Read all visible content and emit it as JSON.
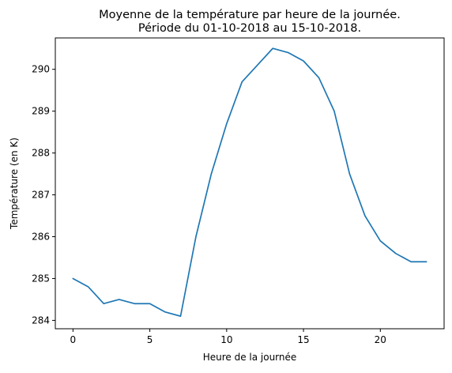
{
  "chart_data": {
    "type": "line",
    "title_line1": "Moyenne de la température par heure de la journée.",
    "title_line2": "Période du 01-10-2018 au 15-10-2018.",
    "xlabel": "Heure de la journée",
    "ylabel": "Température (en K)",
    "xlim": [
      -1.15,
      24.15
    ],
    "ylim": [
      283.8,
      290.75
    ],
    "xticks": [
      0,
      5,
      10,
      15,
      20
    ],
    "yticks": [
      284,
      285,
      286,
      287,
      288,
      289,
      290
    ],
    "grid": false,
    "line_color": "#1f77b4",
    "x": [
      0,
      1,
      2,
      3,
      4,
      5,
      6,
      7,
      8,
      9,
      10,
      11,
      12,
      13,
      14,
      15,
      16,
      17,
      18,
      19,
      20,
      21,
      22,
      23
    ],
    "y": [
      285.0,
      284.8,
      284.4,
      284.5,
      284.4,
      284.4,
      284.2,
      284.1,
      286.0,
      287.5,
      288.7,
      289.7,
      290.1,
      290.5,
      290.4,
      290.2,
      289.8,
      289.0,
      287.5,
      286.5,
      285.9,
      285.6,
      285.4,
      285.4
    ]
  }
}
